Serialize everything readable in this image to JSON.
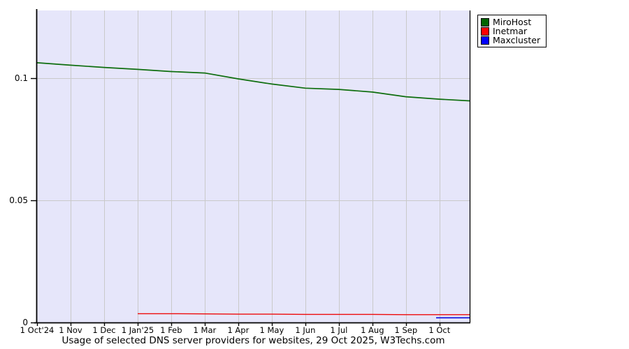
{
  "caption": "Usage of selected DNS server providers for websites, 29 Oct 2025, W3Techs.com",
  "legend": {
    "items": [
      {
        "label": "MiroHost",
        "swatch": "#006400"
      },
      {
        "label": "Inetmar",
        "swatch": "#ff0000"
      },
      {
        "label": "Maxcluster",
        "swatch": "#0000ff"
      }
    ]
  },
  "chart_data": {
    "type": "line",
    "title": "Usage of selected DNS server providers for websites, 29 Oct 2025, W3Techs.com",
    "xlabel": "",
    "ylabel": "",
    "x_unit": "months since 1 Oct 2024",
    "x_tick_labels": [
      "1 Oct'24",
      "1 Nov",
      "1 Dec",
      "1 Jan'25",
      "1 Feb",
      "1 Mar",
      "1 Apr",
      "1 May",
      "1 Jun",
      "1 Jul",
      "1 Aug",
      "1 Sep",
      "1 Oct"
    ],
    "xlim": [
      0,
      12.9
    ],
    "ylim": [
      0,
      0.1277
    ],
    "y_ticks": [
      {
        "label": "0.1",
        "value": 0.1
      },
      {
        "label": "0.05",
        "value": 0.05
      },
      {
        "label": "0",
        "value": 0
      }
    ],
    "grid": true,
    "legend_position": "top-right-outside",
    "plot_bg": "#e6e6fa",
    "grid_color": "#c9c9c9",
    "axis_color": "#000000",
    "series": [
      {
        "name": "MiroHost",
        "color": "#0e6e0e",
        "stroke_width": 1.7,
        "points": [
          [
            0,
            0.1063
          ],
          [
            1,
            0.1053
          ],
          [
            2,
            0.1044
          ],
          [
            3,
            0.1036
          ],
          [
            4,
            0.1027
          ],
          [
            5,
            0.1021
          ],
          [
            6,
            0.0997
          ],
          [
            7,
            0.0976
          ],
          [
            8,
            0.0959
          ],
          [
            9,
            0.0954
          ],
          [
            10,
            0.0943
          ],
          [
            11,
            0.0924
          ],
          [
            12,
            0.0914
          ],
          [
            12.9,
            0.0907
          ]
        ]
      },
      {
        "name": "Inetmar",
        "color": "#ee0a0a",
        "stroke_width": 1.4,
        "points": [
          [
            3,
            0.0036
          ],
          [
            4,
            0.0036
          ],
          [
            5,
            0.0035
          ],
          [
            6,
            0.0034
          ],
          [
            7,
            0.0034
          ],
          [
            8,
            0.0033
          ],
          [
            9,
            0.0033
          ],
          [
            10,
            0.0033
          ],
          [
            11,
            0.0032
          ],
          [
            12,
            0.0032
          ],
          [
            12.9,
            0.0032
          ]
        ]
      },
      {
        "name": "Maxcluster",
        "color": "#0a0ae0",
        "stroke_width": 1.6,
        "points": [
          [
            11.9,
            0.0019
          ],
          [
            12.9,
            0.0019
          ]
        ]
      }
    ]
  }
}
